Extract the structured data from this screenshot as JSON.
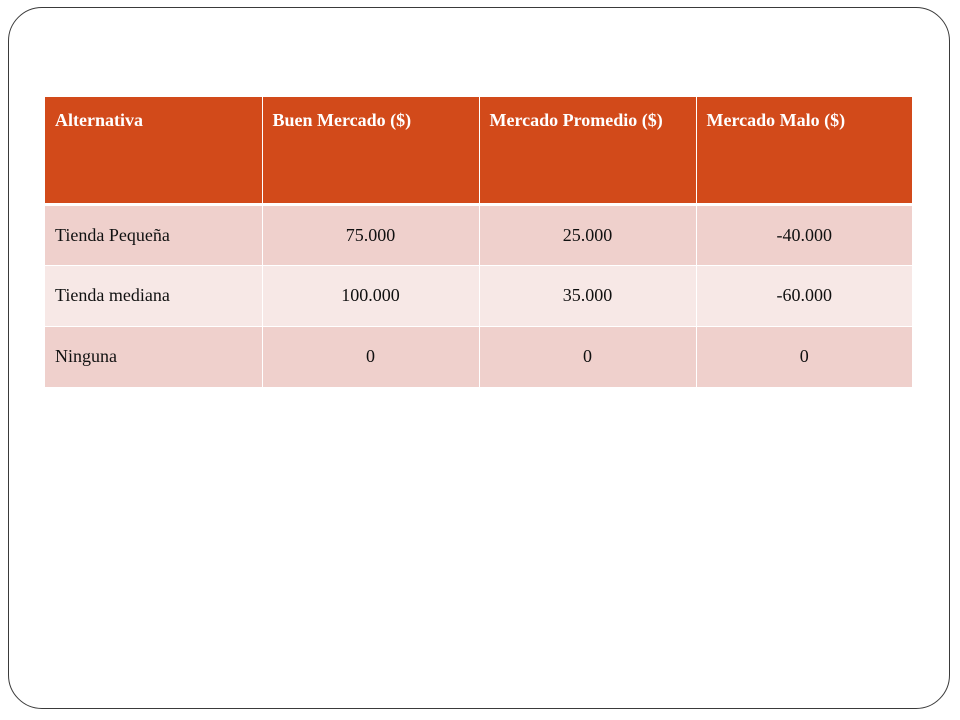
{
  "table": {
    "headers": [
      "Alternativa",
      "Buen Mercado ($)",
      "Mercado Promedio ($)",
      "Mercado Malo ($)"
    ],
    "rows": [
      [
        "Tienda Pequeña",
        "75.000",
        "25.000",
        "-40.000"
      ],
      [
        "Tienda mediana",
        "100.000",
        "35.000",
        "-60.000"
      ],
      [
        "Ninguna",
        "0",
        "0",
        "0"
      ]
    ]
  },
  "colors": {
    "header_bg": "#d24a1a",
    "row_odd_bg": "#efd0cc",
    "row_even_bg": "#f7e8e6",
    "frame_border": "#3a3a3a"
  }
}
